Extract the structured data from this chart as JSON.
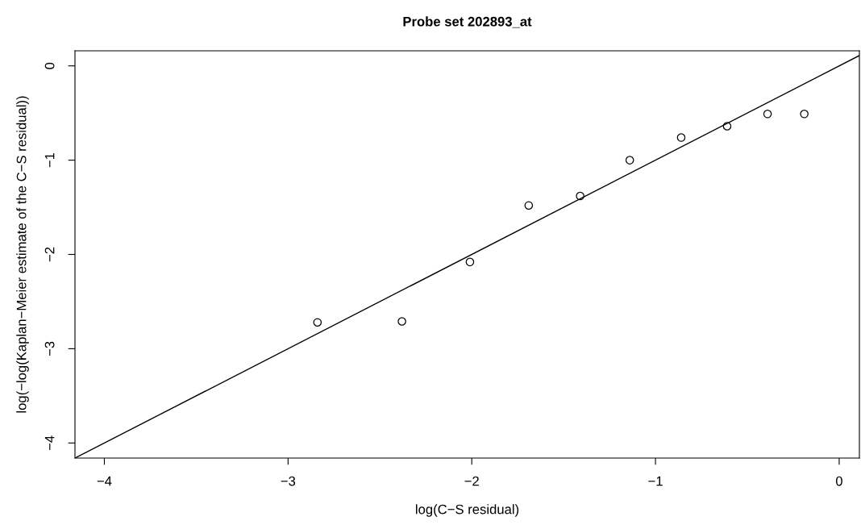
{
  "chart_data": {
    "type": "scatter",
    "title": "Probe set 202893_at",
    "xlabel": "log(C−S residual)",
    "ylabel": "log(−log(Kaplan−Meier estimate of the C−S residual))",
    "xlim": [
      -4.16,
      0.11
    ],
    "ylim": [
      -4.16,
      0.16
    ],
    "xticks": [
      {
        "value": -4,
        "label": "−4"
      },
      {
        "value": -3,
        "label": "−3"
      },
      {
        "value": -2,
        "label": "−2"
      },
      {
        "value": -1,
        "label": "−1"
      },
      0
    ],
    "yticks": [
      {
        "value": -4,
        "label": "−4"
      },
      {
        "value": -3,
        "label": "−3"
      },
      {
        "value": -2,
        "label": "−2"
      },
      {
        "value": -1,
        "label": "−1"
      },
      0
    ],
    "grid": false,
    "series": [
      {
        "type": "scatter",
        "marker": "circle",
        "color": "#000000",
        "x": [
          -2.84,
          -2.38,
          -2.01,
          -1.69,
          -1.41,
          -1.14,
          -0.86,
          -0.61,
          -0.39,
          -0.19
        ],
        "values": [
          -2.72,
          -2.71,
          -2.08,
          -1.48,
          -1.38,
          -1.0,
          -0.76,
          -0.64,
          -0.51,
          -0.51
        ]
      },
      {
        "type": "line",
        "color": "#000000",
        "line_style": "solid",
        "x": [
          -4.16,
          0.11
        ],
        "values": [
          -4.16,
          0.11
        ]
      }
    ]
  }
}
